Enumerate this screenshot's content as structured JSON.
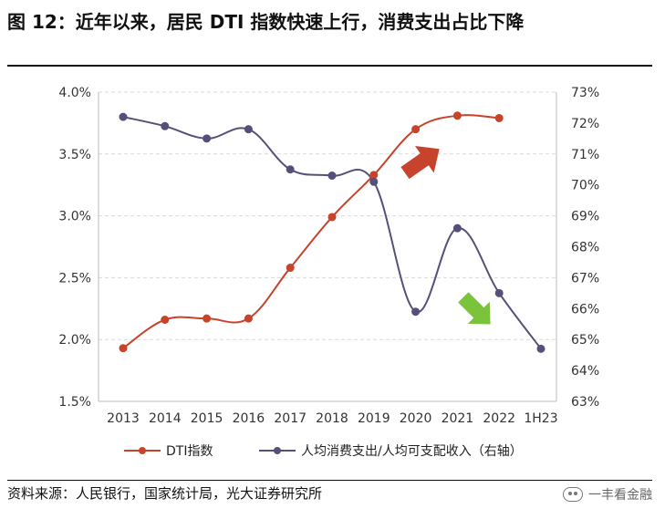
{
  "header": {
    "title": "图 12：近年以来，居民 DTI 指数快速上行，消费支出占比下降"
  },
  "footer": {
    "source": "资料来源：人民银行，国家统计局，光大证券研究所",
    "watermark": "一丰看金融"
  },
  "colors": {
    "dti": "#c8432b",
    "consumption": "#54507a",
    "arrow_up": "#c8432b",
    "arrow_down": "#7ac33b"
  },
  "chart_data": {
    "type": "line",
    "categories": [
      "2013",
      "2014",
      "2015",
      "2016",
      "2017",
      "2018",
      "2019",
      "2020",
      "2021",
      "2022",
      "1H23"
    ],
    "series": [
      {
        "name": "DTI指数",
        "axis": "left",
        "values": [
          1.93,
          2.16,
          2.17,
          2.17,
          2.58,
          2.99,
          3.33,
          3.7,
          3.81,
          3.79,
          null
        ]
      },
      {
        "name": "人均消费支出/人均可支配收入（右轴）",
        "axis": "right",
        "values": [
          72.2,
          71.9,
          71.5,
          71.8,
          70.5,
          70.3,
          70.1,
          65.9,
          68.6,
          66.5,
          64.7
        ]
      }
    ],
    "y_left": {
      "min": 1.5,
      "max": 4.0,
      "ticks": [
        "1.5%",
        "2.0%",
        "2.5%",
        "3.0%",
        "3.5%",
        "4.0%"
      ]
    },
    "y_right": {
      "min": 63,
      "max": 73,
      "ticks": [
        "63%",
        "64%",
        "65%",
        "66%",
        "67%",
        "68%",
        "69%",
        "70%",
        "71%",
        "72%",
        "73%"
      ]
    },
    "grid": "horizontal-dashed",
    "legend_position": "bottom"
  }
}
